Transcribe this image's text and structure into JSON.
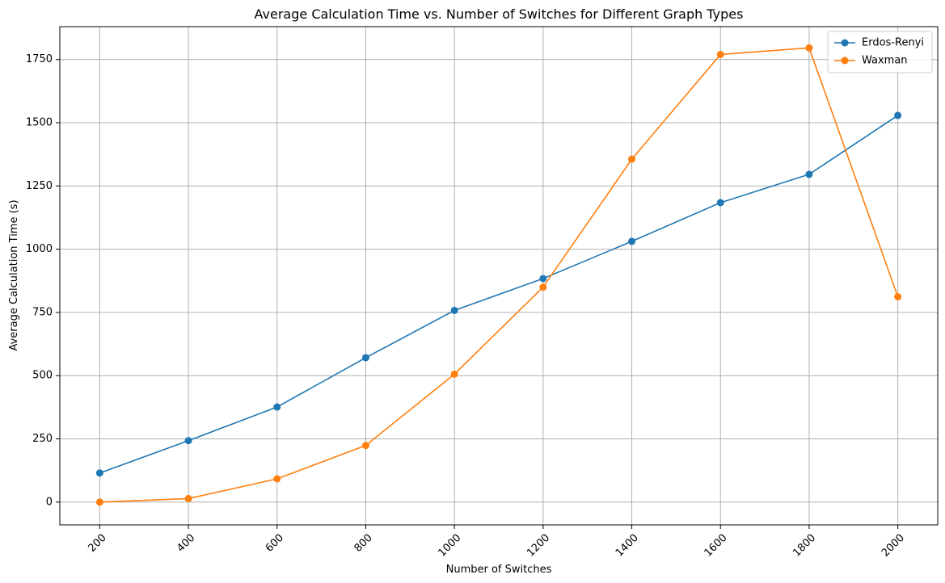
{
  "chart_data": {
    "type": "line",
    "title": "Average Calculation Time vs. Number of Switches for Different Graph Types",
    "xlabel": "Number of Switches",
    "ylabel": "Average Calculation Time (s)",
    "x": [
      200,
      400,
      600,
      800,
      1000,
      1200,
      1400,
      1600,
      1800,
      2000
    ],
    "xlim": [
      110,
      2090
    ],
    "ylim": [
      -90,
      1880
    ],
    "xticks": [
      200,
      400,
      600,
      800,
      1000,
      1200,
      1400,
      1600,
      1800,
      2000
    ],
    "yticks": [
      0,
      250,
      500,
      750,
      1000,
      1250,
      1500,
      1750
    ],
    "xtick_rotation": 45,
    "grid": true,
    "legend_position": "top-right",
    "series": [
      {
        "name": "Erdos-Renyi",
        "color": "#1f77b4",
        "marker": "circle",
        "values": [
          115,
          243,
          376,
          571,
          758,
          884,
          1031,
          1184,
          1296,
          1529
        ]
      },
      {
        "name": "Waxman",
        "color": "#ff7f0e",
        "marker": "circle",
        "values": [
          0,
          14,
          92,
          224,
          506,
          850,
          1356,
          1770,
          1796,
          812
        ]
      }
    ]
  }
}
